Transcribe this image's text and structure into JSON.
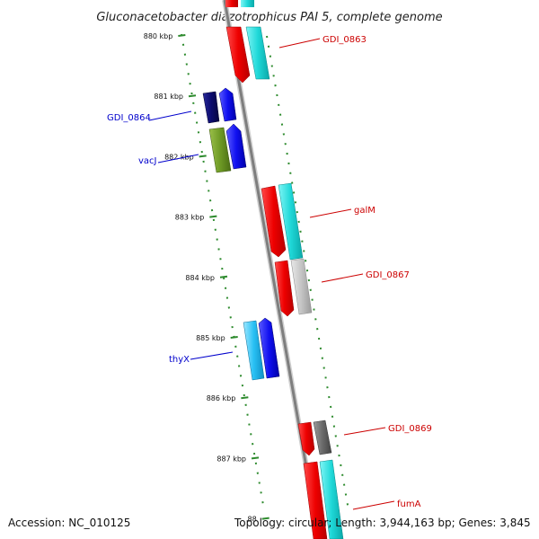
{
  "title": "Gluconacetobacter diazotrophicus PAI 5, complete genome",
  "accession": "Accession: NC_010125",
  "topology": "Topology: circular; Length: 3,944,163 bp; Genes: 3,845",
  "scale_labels": [
    "880 kbp",
    "881 kbp",
    "882 kbp",
    "883 kbp",
    "884 kbp",
    "885 kbp",
    "886 kbp",
    "887 kbp",
    "88"
  ],
  "colors": {
    "backbone": "#8a8a8a",
    "tick": "#2e8b2e",
    "forward_label": "#cc0000",
    "reverse_label": "#0000cc"
  },
  "genes": [
    {
      "label": "GDI_0863",
      "strand": "forward"
    },
    {
      "label": "GDI_0864",
      "strand": "reverse"
    },
    {
      "label": "vacJ",
      "strand": "reverse"
    },
    {
      "label": "galM",
      "strand": "forward"
    },
    {
      "label": "GDI_0867",
      "strand": "forward"
    },
    {
      "label": "thyX",
      "strand": "reverse"
    },
    {
      "label": "GDI_0869",
      "strand": "forward"
    },
    {
      "label": "fumA",
      "strand": "forward"
    }
  ]
}
